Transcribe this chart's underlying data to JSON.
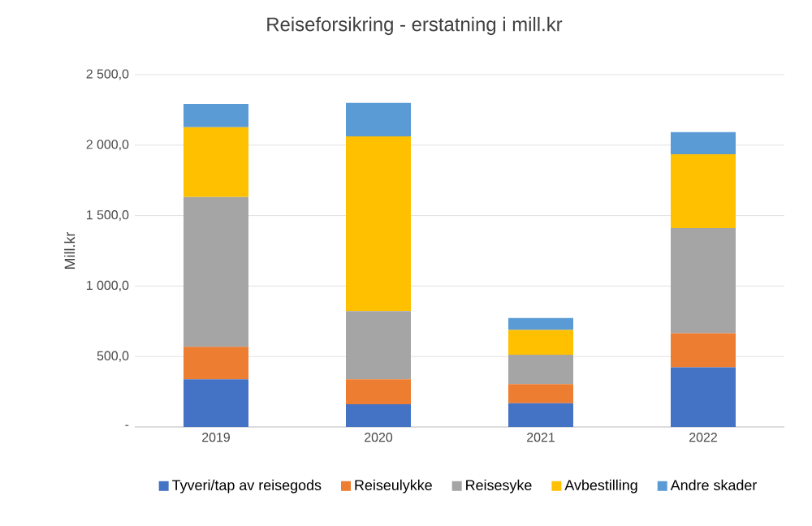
{
  "chart_data": {
    "type": "bar",
    "title": "Reiseforsikring - erstatning i mill.kr",
    "ylabel": "Mill.kr",
    "categories": [
      "2019",
      "2020",
      "2021",
      "2022"
    ],
    "stacked": true,
    "series": [
      {
        "name": "Tyveri/tap av reisegods",
        "color": "#4472c4",
        "values": [
          338,
          162,
          169,
          423
        ]
      },
      {
        "name": "Reiseulykke",
        "color": "#ed7d31",
        "values": [
          231,
          176,
          135,
          242
        ]
      },
      {
        "name": "Reisesyke",
        "color": "#a5a5a5",
        "values": [
          1062,
          485,
          208,
          747
        ]
      },
      {
        "name": "Avbestilling",
        "color": "#ffc000",
        "values": [
          496,
          1239,
          176,
          523
        ]
      },
      {
        "name": "Andre skader",
        "color": "#5b9bd5",
        "values": [
          165,
          238,
          85,
          157
        ]
      }
    ],
    "ylim": [
      0,
      2500
    ],
    "yticks": [
      {
        "value": 0,
        "label": "-"
      },
      {
        "value": 500,
        "label": "500,0"
      },
      {
        "value": 1000,
        "label": "1 000,0"
      },
      {
        "value": 1500,
        "label": "1 500,0"
      },
      {
        "value": 2000,
        "label": "2 000,0"
      },
      {
        "value": 2500,
        "label": "2 500,0"
      }
    ],
    "grid": "y",
    "legend": "bottom"
  }
}
